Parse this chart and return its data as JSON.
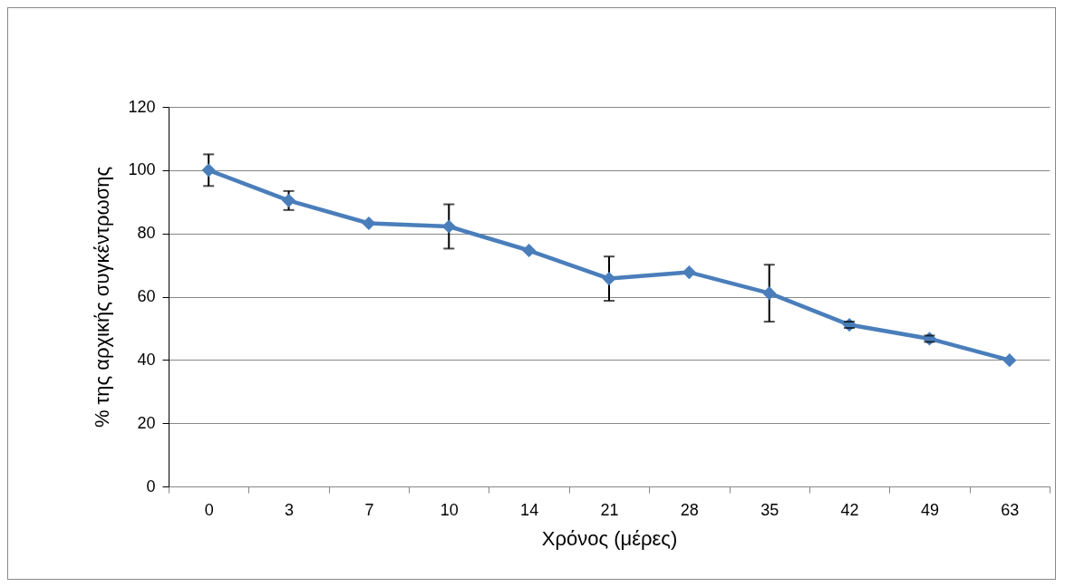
{
  "chart_data": {
    "type": "line",
    "xlabel": "Χρόνος (μέρες)",
    "ylabel": "% της αρχικής συγκέντρωσης",
    "categories": [
      "0",
      "3",
      "7",
      "10",
      "14",
      "21",
      "28",
      "35",
      "42",
      "49",
      "63"
    ],
    "values": [
      100,
      90.4,
      83.2,
      82.2,
      74.6,
      65.7,
      67.7,
      61.1,
      51.1,
      46.7,
      39.9
    ],
    "errors": [
      5,
      3,
      null,
      7,
      null,
      7,
      null,
      9,
      1,
      1,
      null
    ],
    "color": "#4a7ebb",
    "ylim": [
      0,
      120
    ],
    "yticks": [
      0,
      20,
      40,
      60,
      80,
      100,
      120
    ],
    "grid": "y",
    "marker": "diamond",
    "line_style": "solid"
  }
}
